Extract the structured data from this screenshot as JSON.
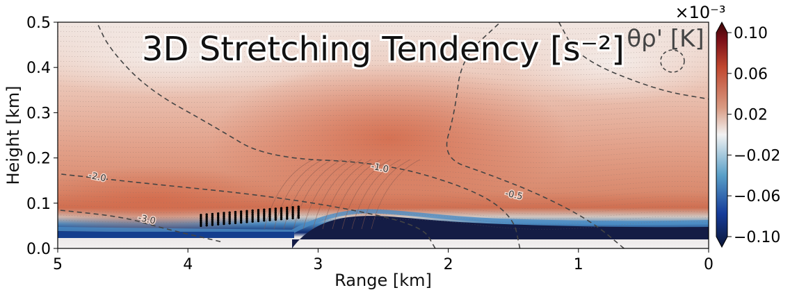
{
  "chart_data": {
    "type": "heatmap",
    "title": "3D Stretching Tendency [s⁻²]",
    "xlabel": "Range [km]",
    "ylabel": "Height [km]",
    "xlim": [
      5,
      0
    ],
    "ylim": [
      0,
      0.5
    ],
    "x_ticks": [
      "5",
      "4",
      "3",
      "2",
      "1",
      "0"
    ],
    "y_ticks": [
      "0.0",
      "0.1",
      "0.2",
      "0.3",
      "0.4",
      "0.5"
    ],
    "colorbar": {
      "scale_label": "×10⁻³",
      "ticks": [
        "0.10",
        "0.06",
        "0.02",
        "−0.02",
        "−0.06",
        "−0.10"
      ],
      "range": [
        -0.1,
        0.1
      ],
      "extend": "both",
      "colormap": [
        "#0b1636",
        "#163c9a",
        "#5aa0c8",
        "#f2f2f2",
        "#d99a82",
        "#c0472f",
        "#7c1018",
        "#3a0608"
      ]
    },
    "contour_legend": "θρ' [K]",
    "contours": [
      {
        "level": "-3.0",
        "path": [
          [
            3.75,
            0.015
          ],
          [
            4.2,
            0.045
          ],
          [
            4.5,
            0.07
          ],
          [
            5.0,
            0.085
          ]
        ]
      },
      {
        "level": "-2.0",
        "path": [
          [
            2.1,
            0.0
          ],
          [
            2.2,
            0.05
          ],
          [
            2.8,
            0.09
          ],
          [
            3.5,
            0.12
          ],
          [
            4.2,
            0.14
          ],
          [
            5.0,
            0.165
          ]
        ]
      },
      {
        "level": "-1.0",
        "path": [
          [
            1.45,
            0.0
          ],
          [
            1.5,
            0.07
          ],
          [
            1.8,
            0.13
          ],
          [
            2.5,
            0.19
          ],
          [
            3.4,
            0.2
          ],
          [
            3.8,
            0.27
          ],
          [
            4.3,
            0.35
          ],
          [
            4.6,
            0.44
          ],
          [
            4.7,
            0.5
          ]
        ]
      },
      {
        "level": "-0.5",
        "path": [
          [
            0.65,
            0.0
          ],
          [
            0.9,
            0.06
          ],
          [
            1.3,
            0.12
          ],
          [
            1.7,
            0.165
          ],
          [
            2.05,
            0.2
          ],
          [
            1.95,
            0.3
          ],
          [
            1.9,
            0.42
          ],
          [
            1.6,
            0.5
          ]
        ]
      },
      {
        "level": "",
        "path": [
          [
            1.15,
            0.5
          ],
          [
            1.0,
            0.42
          ],
          [
            0.4,
            0.35
          ],
          [
            0.0,
            0.33
          ]
        ]
      }
    ],
    "labels_on_contours": [
      {
        "text": "-3.0",
        "x": 4.32,
        "y": 0.058
      },
      {
        "text": "-2.0",
        "x": 4.7,
        "y": 0.152
      },
      {
        "text": "-1.0",
        "x": 2.53,
        "y": 0.172
      },
      {
        "text": "-0.5",
        "x": 1.5,
        "y": 0.112
      }
    ],
    "dotted_lines": 40,
    "dots_region": {
      "x_from": 3.15,
      "x_to": 3.9,
      "y_from": 0.05,
      "y_to": 0.09
    }
  }
}
